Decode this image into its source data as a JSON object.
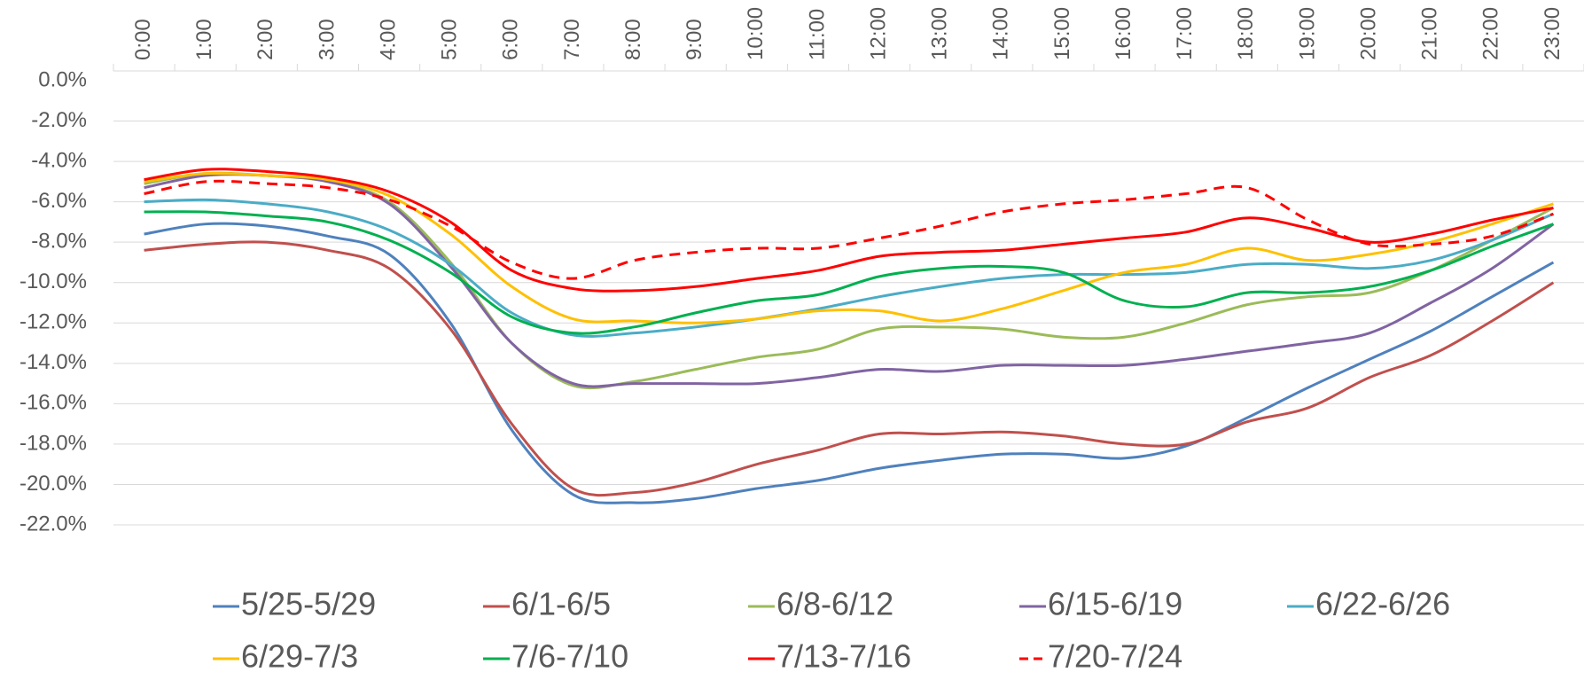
{
  "chart_data": {
    "type": "line",
    "categories": [
      "0:00",
      "1:00",
      "2:00",
      "3:00",
      "4:00",
      "5:00",
      "6:00",
      "7:00",
      "8:00",
      "9:00",
      "10:00",
      "11:00",
      "12:00",
      "13:00",
      "14:00",
      "15:00",
      "16:00",
      "17:00",
      "18:00",
      "19:00",
      "20:00",
      "21:00",
      "22:00",
      "23:00"
    ],
    "ylim": [
      -22,
      0
    ],
    "yticks": [
      {
        "value": 0,
        "label": "0.0%"
      },
      {
        "value": -2,
        "label": "-2.0%"
      },
      {
        "value": -4,
        "label": "-4.0%"
      },
      {
        "value": -6,
        "label": "-6.0%"
      },
      {
        "value": -8,
        "label": "-8.0%"
      },
      {
        "value": -10,
        "label": "-10.0%"
      },
      {
        "value": -12,
        "label": "-12.0%"
      },
      {
        "value": -14,
        "label": "-14.0%"
      },
      {
        "value": -16,
        "label": "-16.0%"
      },
      {
        "value": -18,
        "label": "-18.0%"
      },
      {
        "value": -20,
        "label": "-20.0%"
      },
      {
        "value": -22,
        "label": "-22.0%"
      }
    ],
    "grid": true,
    "smooth": true,
    "x_axis_position": "top",
    "legend": "bottom",
    "series": [
      {
        "name": "5/25-5/29",
        "color": "#4f81bd",
        "line_style": "solid",
        "values": [
          -7.6,
          -7.1,
          -7.2,
          -7.7,
          -8.6,
          -12.0,
          -17.3,
          -20.5,
          -20.9,
          -20.7,
          -20.2,
          -19.8,
          -19.2,
          -18.8,
          -18.5,
          -18.5,
          -18.7,
          -18.1,
          -16.7,
          -15.2,
          -13.8,
          -12.4,
          -10.7,
          -9.0
        ]
      },
      {
        "name": "6/1-6/5",
        "color": "#c0504d",
        "line_style": "solid",
        "values": [
          -8.4,
          -8.1,
          -8.0,
          -8.4,
          -9.3,
          -12.3,
          -17.0,
          -20.2,
          -20.4,
          -19.9,
          -19.0,
          -18.3,
          -17.5,
          -17.5,
          -17.4,
          -17.6,
          -18.0,
          -18.0,
          -16.9,
          -16.2,
          -14.7,
          -13.6,
          -11.9,
          -10.0
        ]
      },
      {
        "name": "6/8-6/12",
        "color": "#9bbb59",
        "line_style": "solid",
        "values": [
          -5.1,
          -4.6,
          -4.7,
          -5.0,
          -6.0,
          -9.0,
          -13.0,
          -15.1,
          -14.9,
          -14.3,
          -13.7,
          -13.3,
          -12.3,
          -12.2,
          -12.3,
          -12.7,
          -12.7,
          -12.0,
          -11.1,
          -10.7,
          -10.5,
          -9.4,
          -7.9,
          -6.3
        ]
      },
      {
        "name": "6/15-6/19",
        "color": "#8064a2",
        "line_style": "solid",
        "values": [
          -5.3,
          -4.7,
          -4.7,
          -5.0,
          -6.1,
          -9.2,
          -13.0,
          -15.0,
          -15.0,
          -15.0,
          -15.0,
          -14.7,
          -14.3,
          -14.4,
          -14.1,
          -14.1,
          -14.1,
          -13.8,
          -13.4,
          -13.0,
          -12.5,
          -11.0,
          -9.3,
          -7.1
        ]
      },
      {
        "name": "6/22-6/26",
        "color": "#4bacc6",
        "line_style": "solid",
        "values": [
          -6.0,
          -5.9,
          -6.1,
          -6.5,
          -7.4,
          -9.1,
          -11.5,
          -12.6,
          -12.5,
          -12.2,
          -11.8,
          -11.3,
          -10.7,
          -10.2,
          -9.8,
          -9.6,
          -9.6,
          -9.5,
          -9.1,
          -9.1,
          -9.3,
          -8.9,
          -7.9,
          -6.6
        ]
      },
      {
        "name": "6/29-7/3",
        "color": "#ffc000",
        "line_style": "solid",
        "values": [
          -5.0,
          -4.6,
          -4.7,
          -4.9,
          -5.7,
          -7.6,
          -10.2,
          -11.8,
          -11.9,
          -12.0,
          -11.8,
          -11.4,
          -11.4,
          -11.9,
          -11.3,
          -10.4,
          -9.5,
          -9.1,
          -8.3,
          -8.9,
          -8.6,
          -8.0,
          -7.1,
          -6.1
        ]
      },
      {
        "name": "7/6-7/10",
        "color": "#00b050",
        "line_style": "solid",
        "values": [
          -6.5,
          -6.5,
          -6.7,
          -7.0,
          -7.9,
          -9.5,
          -11.7,
          -12.5,
          -12.2,
          -11.5,
          -10.9,
          -10.6,
          -9.7,
          -9.3,
          -9.2,
          -9.5,
          -10.9,
          -11.2,
          -10.5,
          -10.5,
          -10.2,
          -9.4,
          -8.2,
          -7.1
        ]
      },
      {
        "name": "7/13-7/16",
        "color": "#ff0000",
        "line_style": "solid",
        "values": [
          -4.9,
          -4.4,
          -4.5,
          -4.8,
          -5.5,
          -7.0,
          -9.4,
          -10.3,
          -10.4,
          -10.2,
          -9.8,
          -9.4,
          -8.7,
          -8.5,
          -8.4,
          -8.1,
          -7.8,
          -7.5,
          -6.8,
          -7.3,
          -8.0,
          -7.6,
          -6.9,
          -6.3
        ]
      },
      {
        "name": "7/20-7/24",
        "color": "#ff0000",
        "line_style": "dashed",
        "values": [
          -5.6,
          -5.0,
          -5.1,
          -5.3,
          -5.9,
          -7.2,
          -9.0,
          -9.8,
          -8.9,
          -8.5,
          -8.3,
          -8.3,
          -7.8,
          -7.2,
          -6.5,
          -6.1,
          -5.9,
          -5.6,
          -5.3,
          -6.9,
          -8.1,
          -8.1,
          -7.7,
          -6.6
        ]
      }
    ]
  }
}
